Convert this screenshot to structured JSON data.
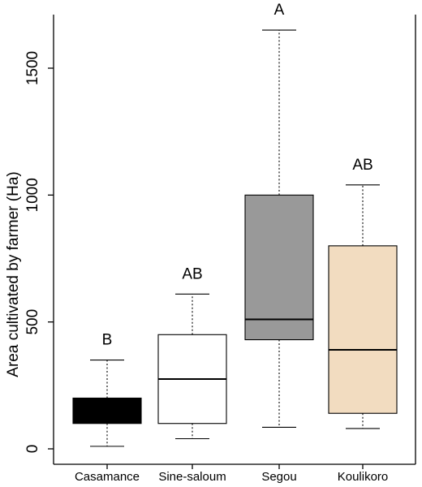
{
  "chart_data": {
    "type": "boxplot",
    "title": "",
    "xlabel": "",
    "ylabel": "Area cultivated by farmer (Ha)",
    "ylim": [
      0,
      1700
    ],
    "yticks": [
      0,
      500,
      1000,
      1500
    ],
    "ytick_labels": [
      "0",
      "500",
      "1000",
      "1500"
    ],
    "grid": false,
    "categories": [
      "Casamance",
      "Sine-saloum",
      "Segou",
      "Koulikoro"
    ],
    "boxes": [
      {
        "category": "Casamance",
        "min": 10,
        "q1": 100,
        "median": 160,
        "q3": 200,
        "max": 350,
        "letter": "B",
        "color": "#000000"
      },
      {
        "category": "Sine-saloum",
        "min": 40,
        "q1": 100,
        "median": 275,
        "q3": 450,
        "max": 610,
        "letter": "AB",
        "color": "#ffffff"
      },
      {
        "category": "Segou",
        "min": 85,
        "q1": 430,
        "median": 510,
        "q3": 1000,
        "max": 1650,
        "letter": "A",
        "color": "#999999"
      },
      {
        "category": "Koulikoro",
        "min": 80,
        "q1": 140,
        "median": 390,
        "q3": 800,
        "max": 1040,
        "letter": "AB",
        "color": "#f2dcc0"
      }
    ]
  }
}
